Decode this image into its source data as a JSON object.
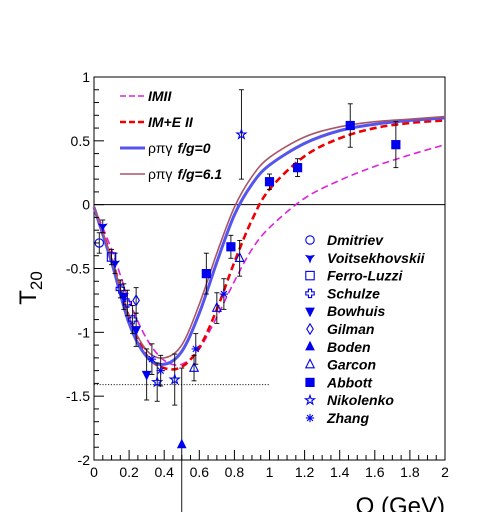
{
  "chart_data": {
    "type": "line",
    "xlabel": "Q (GeV)",
    "ylabel": "T",
    "ylabel_subscript": "20",
    "xlim": [
      0,
      2
    ],
    "ylim": [
      -2,
      1
    ],
    "x_ticks": [
      "0",
      "0.2",
      "0.4",
      "0.6",
      "0.8",
      "1",
      "1.2",
      "1.4",
      "1.6",
      "1.8",
      "2"
    ],
    "y_ticks": [
      "-2",
      "-1.5",
      "-1",
      "-0.5",
      "0",
      "0.5",
      "1"
    ],
    "zero_line": true,
    "dotted_reference": {
      "y": -1.41,
      "x": [
        0.0,
        1.0
      ]
    },
    "theory_curves": [
      {
        "name_prefix": "",
        "name": "IMII",
        "color": "#dd22dd",
        "dash": "dashed",
        "width": 1.6,
        "x": [
          0.0,
          0.1,
          0.2,
          0.3,
          0.4,
          0.5,
          0.6,
          0.7,
          0.8,
          0.9,
          1.0,
          1.2,
          1.4,
          1.6,
          1.8,
          2.0
        ],
        "y": [
          -0.02,
          -0.35,
          -0.75,
          -1.05,
          -1.22,
          -1.25,
          -1.13,
          -0.88,
          -0.6,
          -0.35,
          -0.18,
          0.05,
          0.19,
          0.3,
          0.39,
          0.47
        ]
      },
      {
        "name_prefix": "",
        "name": "IM+E II",
        "color": "#ee0000",
        "dash": "dashed",
        "width": 2.6,
        "x": [
          0.0,
          0.1,
          0.2,
          0.3,
          0.4,
          0.5,
          0.6,
          0.7,
          0.8,
          0.9,
          1.0,
          1.2,
          1.4,
          1.6,
          1.8,
          2.0
        ],
        "y": [
          -0.02,
          -0.42,
          -0.88,
          -1.18,
          -1.28,
          -1.27,
          -1.12,
          -0.82,
          -0.45,
          -0.12,
          0.12,
          0.38,
          0.52,
          0.6,
          0.64,
          0.66
        ]
      },
      {
        "name_prefix": "ρπγ",
        "name": "f/g=0",
        "color": "#5555ee",
        "dash": "solid",
        "width": 3,
        "x": [
          0.0,
          0.1,
          0.2,
          0.3,
          0.4,
          0.5,
          0.6,
          0.7,
          0.8,
          0.9,
          1.0,
          1.2,
          1.4,
          1.6,
          1.8,
          2.0
        ],
        "y": [
          -0.02,
          -0.45,
          -0.93,
          -1.19,
          -1.25,
          -1.15,
          -0.85,
          -0.45,
          -0.08,
          0.16,
          0.31,
          0.48,
          0.58,
          0.63,
          0.66,
          0.68
        ]
      },
      {
        "name_prefix": "ρπγ",
        "name": "f/g=6.1",
        "color": "#aa5566",
        "dash": "solid",
        "width": 1.6,
        "x": [
          0.0,
          0.1,
          0.2,
          0.3,
          0.4,
          0.5,
          0.6,
          0.7,
          0.8,
          0.9,
          1.0,
          1.2,
          1.4,
          1.6,
          1.8,
          2.0
        ],
        "y": [
          -0.02,
          -0.42,
          -0.88,
          -1.14,
          -1.2,
          -1.1,
          -0.78,
          -0.38,
          -0.02,
          0.22,
          0.37,
          0.53,
          0.61,
          0.65,
          0.67,
          0.69
        ]
      }
    ],
    "experiments": [
      {
        "name": "Dmitriev",
        "symbol": "circle-open",
        "color": "#0000ee",
        "points": [
          {
            "x": 0.03,
            "y": -0.3,
            "err": 0.08
          }
        ]
      },
      {
        "name": "Voitsekhovskii",
        "symbol": "tristar",
        "color": "#0000ee",
        "points": [
          {
            "x": 0.05,
            "y": -0.17,
            "err": 0.05
          },
          {
            "x": 0.12,
            "y": -0.46,
            "err": 0.08
          }
        ]
      },
      {
        "name": "Ferro-Luzzi",
        "symbol": "square-open",
        "color": "#0000ee",
        "points": [
          {
            "x": 0.1,
            "y": -0.41,
            "err": 0.06
          }
        ]
      },
      {
        "name": "Schulze",
        "symbol": "cross-open",
        "color": "#0000ee",
        "points": [
          {
            "x": 0.15,
            "y": -0.66,
            "err": 0.07
          },
          {
            "x": 0.19,
            "y": -0.77,
            "err": 0.1
          },
          {
            "x": 0.22,
            "y": -0.9,
            "err": 0.11
          }
        ]
      },
      {
        "name": "Bowhuis",
        "symbol": "triangle-down-filled",
        "color": "#0000ee",
        "points": [
          {
            "x": 0.17,
            "y": -0.72,
            "err": 0.1
          },
          {
            "x": 0.24,
            "y": -0.98,
            "err": 0.13
          },
          {
            "x": 0.3,
            "y": -1.33,
            "err": 0.2
          }
        ]
      },
      {
        "name": "Gilman",
        "symbol": "diamond-open",
        "color": "#0000ee",
        "points": [
          {
            "x": 0.24,
            "y": -0.75,
            "err": 0.1
          }
        ]
      },
      {
        "name": "Boden",
        "symbol": "triangle-up-filled",
        "color": "#0000ee",
        "points": [
          {
            "x": 0.5,
            "y": -1.88,
            "err": 0.6
          }
        ]
      },
      {
        "name": "Garcon",
        "symbol": "triangle-up-open",
        "color": "#0000ee",
        "points": [
          {
            "x": 0.57,
            "y": -1.28,
            "err": 0.1
          },
          {
            "x": 0.7,
            "y": -0.81,
            "err": 0.12
          },
          {
            "x": 0.83,
            "y": -0.42,
            "err": 0.14
          }
        ]
      },
      {
        "name": "Abbott",
        "symbol": "square-filled",
        "color": "#0000ee",
        "points": [
          {
            "x": 0.64,
            "y": -0.54,
            "err": 0.16
          },
          {
            "x": 0.78,
            "y": -0.33,
            "err": 0.09
          },
          {
            "x": 1.0,
            "y": 0.18,
            "err": 0.06
          },
          {
            "x": 1.16,
            "y": 0.29,
            "err": 0.07
          },
          {
            "x": 1.46,
            "y": 0.62,
            "err": 0.17
          },
          {
            "x": 1.72,
            "y": 0.47,
            "err": 0.18
          }
        ]
      },
      {
        "name": "Nikolenko",
        "symbol": "star-open",
        "color": "#0000ee",
        "points": [
          {
            "x": 0.36,
            "y": -1.39,
            "err": 0.15
          },
          {
            "x": 0.46,
            "y": -1.37,
            "err": 0.2
          },
          {
            "x": 0.84,
            "y": 0.55,
            "err": 0.35
          }
        ]
      },
      {
        "name": "Zhang",
        "symbol": "asterisk",
        "color": "#0000ee",
        "points": [
          {
            "x": 0.33,
            "y": -1.21,
            "err": 0.12
          },
          {
            "x": 0.38,
            "y": -1.3,
            "err": 0.12
          },
          {
            "x": 0.58,
            "y": -1.13,
            "err": 0.12
          },
          {
            "x": 0.74,
            "y": -0.7,
            "err": 0.12
          }
        ]
      }
    ]
  }
}
